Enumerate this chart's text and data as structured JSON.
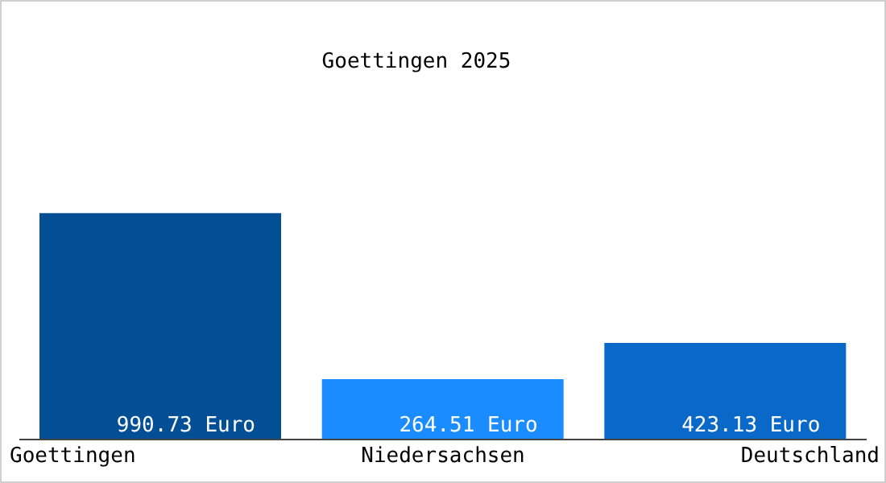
{
  "chart_data": {
    "type": "bar",
    "title": "Goettingen 2025",
    "categories": [
      "Goettingen",
      "Niedersachsen",
      "Deutschland"
    ],
    "values": [
      990.73,
      264.51,
      423.13
    ],
    "colors": [
      "#034f96",
      "#1a8cff",
      "#0a68c9"
    ],
    "value_labels": [
      "990.73 Euro",
      "264.51 Euro",
      "423.13 Euro"
    ]
  }
}
